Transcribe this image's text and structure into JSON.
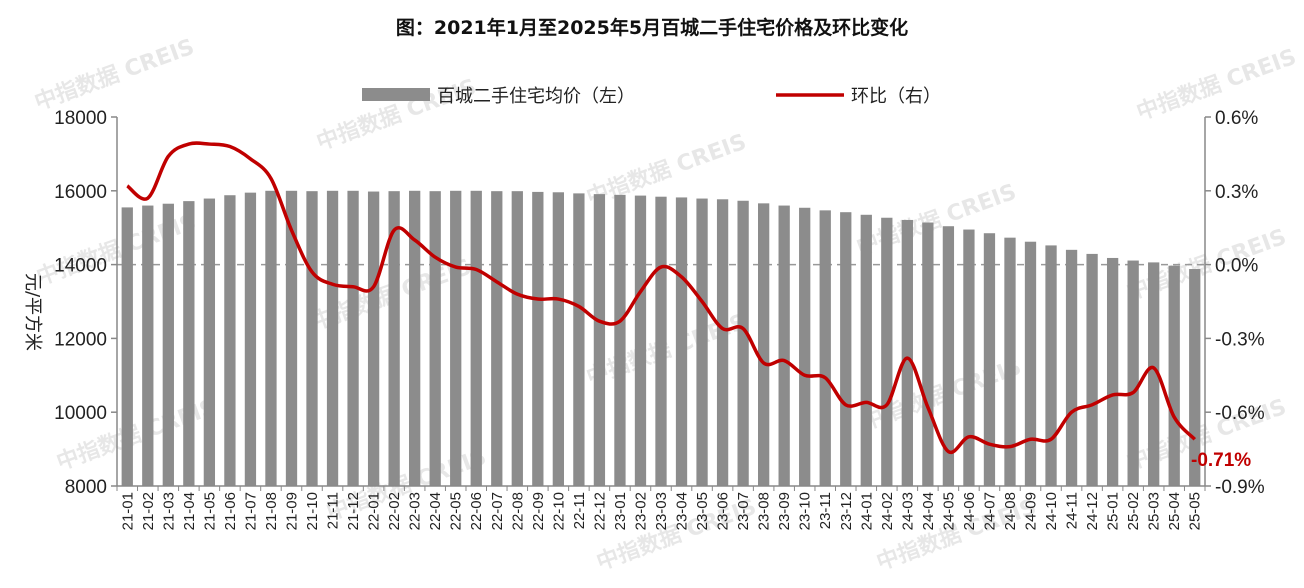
{
  "watermark": "中指数据 CREIS",
  "chart_data": {
    "type": "bar+line",
    "title": "图：2021年1月至2025年5月百城二手住宅价格及环比变化",
    "ylabel_left": "元/平方米",
    "ylim_left": [
      8000,
      18000
    ],
    "yticks_left": [
      "8000",
      "10000",
      "12000",
      "14000",
      "16000",
      "18000"
    ],
    "ylim_right": [
      -0.9,
      0.6
    ],
    "yticks_right": [
      "-0.9%",
      "-0.6%",
      "-0.3%",
      "0.0%",
      "0.3%",
      "0.6%"
    ],
    "categories": [
      "21-01",
      "21-02",
      "21-03",
      "21-04",
      "21-05",
      "21-06",
      "21-07",
      "21-08",
      "21-09",
      "21-10",
      "21-11",
      "21-12",
      "22-01",
      "22-02",
      "22-03",
      "22-04",
      "22-05",
      "22-06",
      "22-07",
      "22-08",
      "22-09",
      "22-10",
      "22-11",
      "22-12",
      "23-01",
      "23-02",
      "23-03",
      "23-04",
      "23-05",
      "23-06",
      "23-07",
      "23-08",
      "23-09",
      "23-10",
      "23-11",
      "23-12",
      "24-01",
      "24-02",
      "24-03",
      "24-04",
      "24-05",
      "24-06",
      "24-07",
      "24-08",
      "24-09",
      "24-10",
      "24-11",
      "24-12",
      "25-01",
      "25-02",
      "25-03",
      "25-04",
      "25-05"
    ],
    "series": [
      {
        "name": "百城二手住宅均价（左）",
        "type": "bar",
        "color": "#8c8c8c",
        "values": [
          15550,
          15600,
          15650,
          15720,
          15790,
          15880,
          15950,
          16000,
          16000,
          15990,
          16000,
          16000,
          15980,
          15990,
          16000,
          15990,
          16000,
          16000,
          15990,
          15990,
          15970,
          15960,
          15930,
          15910,
          15890,
          15870,
          15840,
          15820,
          15790,
          15770,
          15730,
          15660,
          15600,
          15540,
          15470,
          15420,
          15350,
          15270,
          15210,
          15140,
          15040,
          14950,
          14850,
          14730,
          14620,
          14520,
          14400,
          14290,
          14180,
          14110,
          14060,
          13970,
          13880
        ]
      },
      {
        "name": "环比（右）",
        "type": "line",
        "color": "#c00000",
        "values": [
          0.32,
          0.27,
          0.44,
          0.49,
          0.49,
          0.48,
          0.43,
          0.35,
          0.14,
          -0.03,
          -0.08,
          -0.09,
          -0.09,
          0.14,
          0.1,
          0.03,
          -0.01,
          -0.02,
          -0.07,
          -0.12,
          -0.14,
          -0.14,
          -0.17,
          -0.23,
          -0.23,
          -0.11,
          -0.01,
          -0.05,
          -0.15,
          -0.26,
          -0.26,
          -0.4,
          -0.39,
          -0.45,
          -0.46,
          -0.57,
          -0.56,
          -0.57,
          -0.38,
          -0.58,
          -0.76,
          -0.7,
          -0.73,
          -0.74,
          -0.71,
          -0.71,
          -0.6,
          -0.57,
          -0.53,
          -0.52,
          -0.42,
          -0.62,
          -0.71
        ]
      }
    ],
    "end_label": "-0.71%",
    "zero_line": "dashed",
    "legend_position": "top-center"
  }
}
